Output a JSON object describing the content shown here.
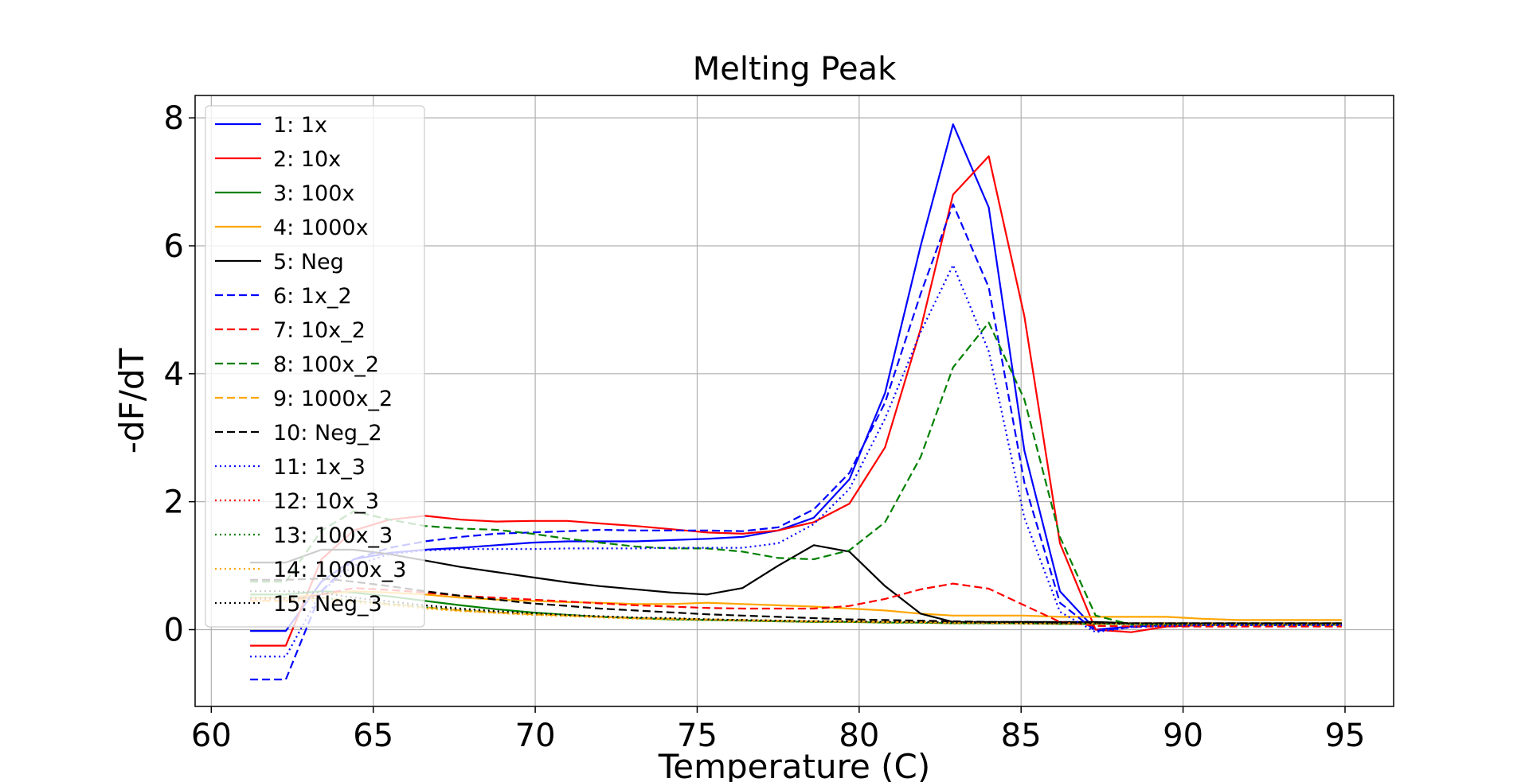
{
  "chart_data": {
    "type": "line",
    "title": "Melting Peak",
    "xlabel": "Temperature (C)",
    "ylabel": "-dF/dT",
    "xlim": [
      59.5,
      96.5
    ],
    "ylim": [
      -1.2,
      8.35
    ],
    "xticks": [
      60,
      65,
      70,
      75,
      80,
      85,
      90,
      95
    ],
    "xtick_labels": [
      "60",
      "65",
      "70",
      "75",
      "80",
      "85",
      "90",
      "95"
    ],
    "yticks": [
      0,
      2,
      4,
      6,
      8
    ],
    "ytick_labels": [
      "0",
      "2",
      "4",
      "6",
      "8"
    ],
    "grid": true,
    "legend_position": "upper left",
    "x": [
      61.2,
      62.3,
      63.4,
      64.4,
      65.5,
      66.6,
      67.7,
      68.8,
      69.9,
      71.0,
      72.0,
      73.1,
      74.2,
      75.3,
      76.4,
      77.5,
      78.6,
      79.7,
      80.8,
      81.9,
      82.9,
      84.0,
      85.1,
      86.2,
      87.3,
      88.4,
      89.5,
      90.6,
      91.7,
      92.8,
      93.9,
      94.9
    ],
    "series": [
      {
        "name": "1: 1x",
        "color": "#0000ff",
        "dash": "solid",
        "values": [
          -0.02,
          -0.02,
          0.75,
          1.1,
          1.2,
          1.25,
          1.28,
          1.32,
          1.36,
          1.38,
          1.38,
          1.38,
          1.4,
          1.42,
          1.45,
          1.55,
          1.75,
          2.35,
          3.7,
          6.0,
          7.9,
          6.6,
          2.8,
          0.6,
          0.0,
          0.05,
          0.07,
          0.08,
          0.08,
          0.08,
          0.08,
          0.08
        ]
      },
      {
        "name": "2: 10x",
        "color": "#ff0000",
        "dash": "solid",
        "values": [
          -0.25,
          -0.25,
          1.1,
          1.55,
          1.72,
          1.78,
          1.72,
          1.69,
          1.7,
          1.7,
          1.66,
          1.62,
          1.57,
          1.52,
          1.5,
          1.55,
          1.68,
          1.97,
          2.85,
          4.7,
          6.8,
          7.4,
          4.9,
          1.35,
          0.0,
          -0.04,
          0.05,
          0.07,
          0.08,
          0.08,
          0.08,
          0.08
        ]
      },
      {
        "name": "3: 100x",
        "color": "#008000",
        "dash": "solid",
        "values": [
          0.55,
          0.55,
          0.6,
          0.58,
          0.52,
          0.45,
          0.38,
          0.32,
          0.27,
          0.23,
          0.2,
          0.18,
          0.16,
          0.15,
          0.14,
          0.13,
          0.12,
          0.12,
          0.11,
          0.11,
          0.1,
          0.1,
          0.1,
          0.09,
          0.09,
          0.09,
          0.09,
          0.08,
          0.08,
          0.08,
          0.08,
          0.08
        ]
      },
      {
        "name": "4: 1000x",
        "color": "#ffa500",
        "dash": "solid",
        "values": [
          0.5,
          0.5,
          0.55,
          0.6,
          0.58,
          0.55,
          0.5,
          0.47,
          0.45,
          0.43,
          0.42,
          0.4,
          0.4,
          0.42,
          0.4,
          0.38,
          0.36,
          0.33,
          0.3,
          0.25,
          0.22,
          0.22,
          0.22,
          0.2,
          0.2,
          0.2,
          0.2,
          0.17,
          0.15,
          0.15,
          0.15,
          0.15
        ]
      },
      {
        "name": "5: Neg",
        "color": "#000000",
        "dash": "solid",
        "values": [
          1.05,
          1.05,
          1.25,
          1.25,
          1.18,
          1.08,
          0.98,
          0.9,
          0.82,
          0.74,
          0.68,
          0.63,
          0.58,
          0.55,
          0.65,
          1.0,
          1.32,
          1.22,
          0.68,
          0.25,
          0.12,
          0.12,
          0.12,
          0.12,
          0.12,
          0.1,
          0.1,
          0.1,
          0.1,
          0.1,
          0.1,
          0.1
        ]
      },
      {
        "name": "6: 1x_2",
        "color": "#0000ff",
        "dash": "dashed",
        "values": [
          -0.78,
          -0.78,
          0.6,
          1.1,
          1.28,
          1.38,
          1.45,
          1.5,
          1.52,
          1.54,
          1.56,
          1.55,
          1.55,
          1.55,
          1.54,
          1.6,
          1.88,
          2.45,
          3.55,
          5.25,
          6.65,
          5.35,
          2.3,
          0.42,
          -0.02,
          0.04,
          0.06,
          0.07,
          0.07,
          0.07,
          0.07,
          0.07
        ]
      },
      {
        "name": "7: 10x_2",
        "color": "#ff0000",
        "dash": "dashed",
        "values": [
          0.45,
          0.45,
          0.55,
          0.65,
          0.62,
          0.58,
          0.53,
          0.5,
          0.47,
          0.44,
          0.41,
          0.38,
          0.36,
          0.34,
          0.33,
          0.33,
          0.33,
          0.37,
          0.48,
          0.63,
          0.72,
          0.64,
          0.38,
          0.12,
          0.06,
          0.05,
          0.05,
          0.05,
          0.05,
          0.05,
          0.05,
          0.05
        ]
      },
      {
        "name": "8: 100x_2",
        "color": "#008000",
        "dash": "dashed",
        "values": [
          0.75,
          0.75,
          1.55,
          1.85,
          1.72,
          1.62,
          1.58,
          1.56,
          1.5,
          1.42,
          1.36,
          1.3,
          1.27,
          1.27,
          1.22,
          1.12,
          1.1,
          1.24,
          1.68,
          2.7,
          4.1,
          4.8,
          3.6,
          1.45,
          0.22,
          0.08,
          0.08,
          0.08,
          0.08,
          0.08,
          0.08,
          0.08
        ]
      },
      {
        "name": "9: 1000x_2",
        "color": "#ffa500",
        "dash": "dashed",
        "values": [
          0.45,
          0.45,
          0.5,
          0.45,
          0.4,
          0.35,
          0.3,
          0.27,
          0.24,
          0.22,
          0.2,
          0.18,
          0.17,
          0.16,
          0.15,
          0.14,
          0.13,
          0.13,
          0.12,
          0.12,
          0.11,
          0.11,
          0.1,
          0.1,
          0.1,
          0.1,
          0.1,
          0.1,
          0.1,
          0.1,
          0.1,
          0.1
        ]
      },
      {
        "name": "10: Neg_2",
        "color": "#000000",
        "dash": "dashed",
        "values": [
          0.78,
          0.78,
          0.8,
          0.75,
          0.68,
          0.6,
          0.53,
          0.47,
          0.41,
          0.37,
          0.33,
          0.3,
          0.27,
          0.24,
          0.22,
          0.2,
          0.18,
          0.16,
          0.15,
          0.14,
          0.13,
          0.12,
          0.12,
          0.11,
          0.11,
          0.1,
          0.1,
          0.1,
          0.1,
          0.1,
          0.1,
          0.1
        ]
      },
      {
        "name": "11: 1x_3",
        "color": "#0000ff",
        "dash": "dotted",
        "values": [
          -0.42,
          -0.42,
          0.6,
          1.0,
          1.18,
          1.24,
          1.26,
          1.26,
          1.26,
          1.27,
          1.27,
          1.27,
          1.28,
          1.28,
          1.28,
          1.35,
          1.65,
          2.2,
          3.3,
          4.65,
          5.7,
          4.35,
          1.75,
          0.28,
          -0.04,
          0.04,
          0.06,
          0.07,
          0.07,
          0.07,
          0.07,
          0.07
        ]
      },
      {
        "name": "12: 10x_3",
        "color": "#ff0000",
        "dash": "dotted",
        "values": [
          0.48,
          0.48,
          0.5,
          0.45,
          0.4,
          0.35,
          0.31,
          0.27,
          0.24,
          0.22,
          0.2,
          0.18,
          0.17,
          0.16,
          0.15,
          0.14,
          0.13,
          0.12,
          0.12,
          0.11,
          0.11,
          0.1,
          0.1,
          0.09,
          0.09,
          0.09,
          0.09,
          0.08,
          0.08,
          0.08,
          0.08,
          0.08
        ]
      },
      {
        "name": "13: 100x_3",
        "color": "#008000",
        "dash": "dotted",
        "values": [
          0.5,
          0.5,
          0.5,
          0.45,
          0.4,
          0.35,
          0.3,
          0.27,
          0.24,
          0.22,
          0.2,
          0.18,
          0.17,
          0.16,
          0.15,
          0.14,
          0.13,
          0.12,
          0.12,
          0.11,
          0.11,
          0.1,
          0.1,
          0.09,
          0.09,
          0.09,
          0.09,
          0.08,
          0.08,
          0.08,
          0.08,
          0.08
        ]
      },
      {
        "name": "14: 1000x_3",
        "color": "#ffa500",
        "dash": "dotted",
        "values": [
          0.45,
          0.45,
          0.45,
          0.42,
          0.38,
          0.33,
          0.29,
          0.26,
          0.23,
          0.21,
          0.19,
          0.17,
          0.16,
          0.15,
          0.14,
          0.13,
          0.12,
          0.12,
          0.11,
          0.11,
          0.1,
          0.1,
          0.09,
          0.09,
          0.09,
          0.08,
          0.08,
          0.08,
          0.08,
          0.08,
          0.08,
          0.08
        ]
      },
      {
        "name": "15: Neg_3",
        "color": "#000000",
        "dash": "dotted",
        "values": [
          0.6,
          0.6,
          0.58,
          0.5,
          0.44,
          0.38,
          0.33,
          0.29,
          0.26,
          0.23,
          0.21,
          0.19,
          0.18,
          0.16,
          0.15,
          0.14,
          0.13,
          0.13,
          0.12,
          0.12,
          0.11,
          0.11,
          0.1,
          0.1,
          0.1,
          0.09,
          0.09,
          0.09,
          0.09,
          0.09,
          0.09,
          0.09
        ]
      }
    ]
  }
}
